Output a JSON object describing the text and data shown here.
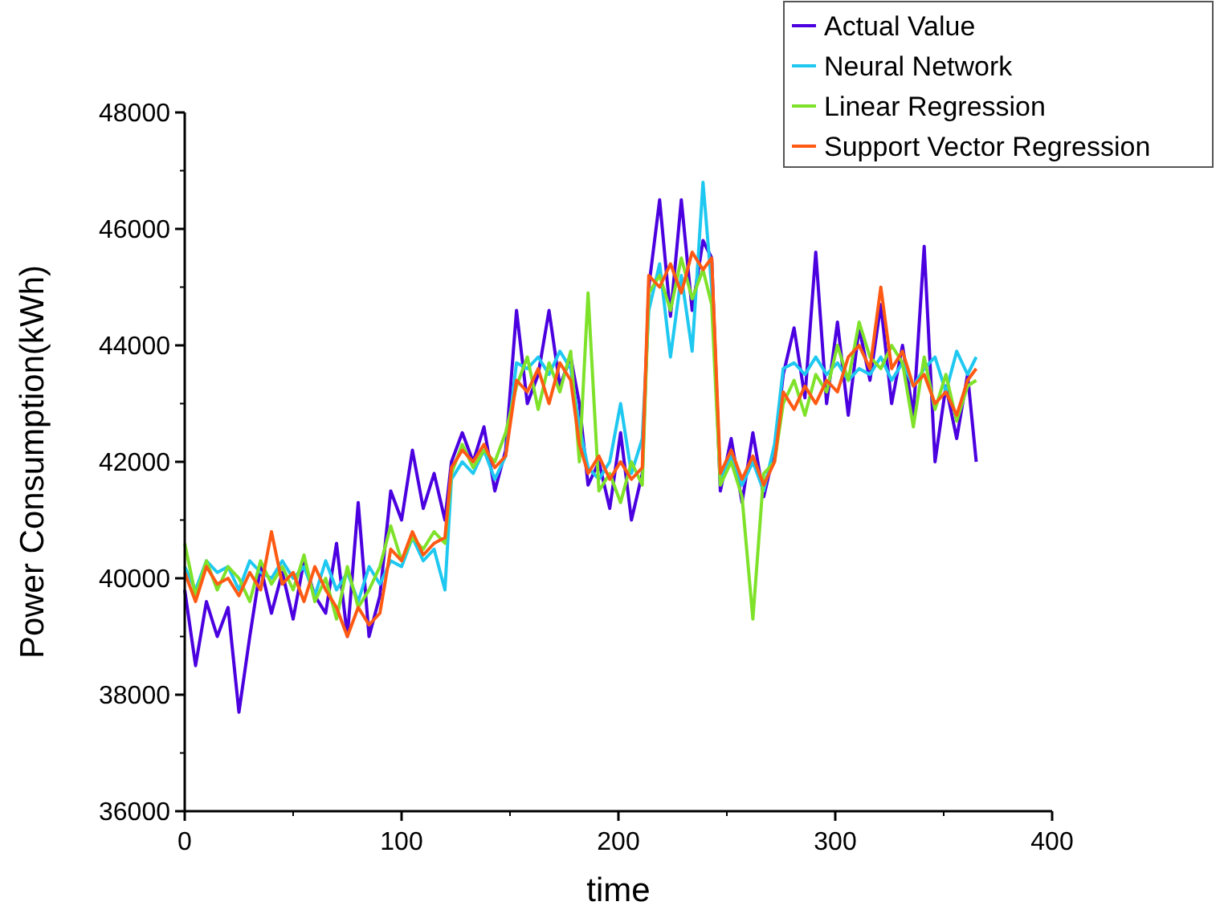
{
  "chart_data": {
    "type": "line",
    "xlabel": "time",
    "ylabel": "Power Consumption(kWh)",
    "xlim": [
      0,
      400
    ],
    "xticks": [
      0,
      100,
      200,
      300,
      400
    ],
    "ylim": [
      36000,
      48000
    ],
    "yticks": [
      36000,
      38000,
      40000,
      42000,
      44000,
      46000,
      48000
    ],
    "grid": false,
    "legend": "top right",
    "marker": "none",
    "line_style": "solid",
    "x": [
      0,
      5,
      10,
      15,
      20,
      25,
      30,
      35,
      40,
      45,
      50,
      55,
      60,
      65,
      70,
      75,
      80,
      85,
      90,
      95,
      100,
      105,
      110,
      115,
      120,
      123,
      128,
      133,
      138,
      143,
      148,
      153,
      158,
      163,
      168,
      173,
      178,
      182,
      186,
      191,
      196,
      201,
      206,
      211,
      214,
      219,
      224,
      229,
      234,
      239,
      243,
      247,
      252,
      257,
      262,
      267,
      272,
      276,
      281,
      286,
      291,
      296,
      301,
      306,
      311,
      316,
      321,
      326,
      331,
      336,
      341,
      346,
      351,
      356,
      361,
      365
    ],
    "series": [
      {
        "name": "Actual Value",
        "color": "#4b00e0",
        "values": [
          39800,
          38500,
          39600,
          39000,
          39500,
          37700,
          39000,
          40200,
          39400,
          40100,
          39300,
          40300,
          39700,
          39400,
          40600,
          39000,
          41300,
          39000,
          39700,
          41500,
          41000,
          42200,
          41200,
          41800,
          41000,
          42000,
          42500,
          42000,
          42600,
          41500,
          42200,
          44600,
          43000,
          43500,
          44600,
          43300,
          43800,
          43000,
          41600,
          42000,
          41200,
          42500,
          41000,
          41800,
          45000,
          46500,
          44500,
          46500,
          44600,
          45800,
          45500,
          41500,
          42400,
          41300,
          42500,
          41400,
          42200,
          43500,
          44300,
          43100,
          45600,
          43000,
          44400,
          42800,
          44300,
          43400,
          44700,
          43000,
          44000,
          42800,
          45700,
          42000,
          43300,
          42400,
          43500,
          42000
        ]
      },
      {
        "name": "Neural Network",
        "color": "#1ec8f0",
        "values": [
          40200,
          39800,
          40300,
          40100,
          40200,
          39800,
          40300,
          40100,
          40000,
          40300,
          40000,
          40200,
          39700,
          40300,
          39800,
          40100,
          39600,
          40200,
          39900,
          40300,
          40200,
          40700,
          40300,
          40500,
          39800,
          41700,
          42000,
          41800,
          42200,
          41700,
          42100,
          43700,
          43600,
          43800,
          43500,
          43900,
          43600,
          42600,
          41900,
          41700,
          42000,
          43000,
          41800,
          42400,
          44600,
          45400,
          43800,
          45200,
          43900,
          46800,
          45000,
          41700,
          42100,
          41600,
          42000,
          41500,
          42300,
          43600,
          43700,
          43500,
          43800,
          43500,
          43700,
          43400,
          43600,
          43500,
          43800,
          43400,
          43700,
          43300,
          43600,
          43800,
          43200,
          43900,
          43500,
          43800
        ]
      },
      {
        "name": "Linear Regression",
        "color": "#7fe22a",
        "values": [
          40600,
          39700,
          40300,
          39800,
          40200,
          40000,
          39600,
          40300,
          39900,
          40200,
          39800,
          40400,
          39600,
          40000,
          39300,
          40200,
          39500,
          39800,
          40200,
          40900,
          40300,
          40700,
          40500,
          40800,
          40600,
          41800,
          42300,
          41900,
          42200,
          42000,
          42500,
          43300,
          43800,
          42900,
          43700,
          43200,
          43900,
          42000,
          44900,
          41500,
          41800,
          41300,
          42000,
          41600,
          44900,
          45200,
          44600,
          45500,
          44800,
          45300,
          44700,
          41600,
          42000,
          41400,
          39300,
          41800,
          42000,
          43000,
          43400,
          42800,
          43500,
          43200,
          44000,
          43400,
          44400,
          43800,
          43600,
          44000,
          43700,
          42600,
          43800,
          42900,
          43500,
          42700,
          43300,
          43400
        ]
      },
      {
        "name": "Support Vector Regression",
        "color": "#ff5a14",
        "values": [
          40100,
          39600,
          40200,
          39900,
          40000,
          39700,
          40100,
          39800,
          40800,
          39900,
          40100,
          39600,
          40200,
          39800,
          39500,
          39000,
          39500,
          39200,
          39400,
          40500,
          40300,
          40800,
          40400,
          40600,
          40700,
          41900,
          42200,
          42000,
          42300,
          41900,
          42100,
          43400,
          43200,
          43600,
          43000,
          43700,
          43400,
          42300,
          41800,
          42100,
          41700,
          42000,
          41700,
          41900,
          45200,
          45000,
          45400,
          44900,
          45600,
          45300,
          45500,
          41800,
          42200,
          41700,
          42100,
          41600,
          42000,
          43200,
          42900,
          43300,
          43000,
          43400,
          43200,
          43800,
          44000,
          43600,
          45000,
          43600,
          43900,
          43300,
          43500,
          43000,
          43200,
          42800,
          43400,
          43600
        ]
      }
    ]
  }
}
